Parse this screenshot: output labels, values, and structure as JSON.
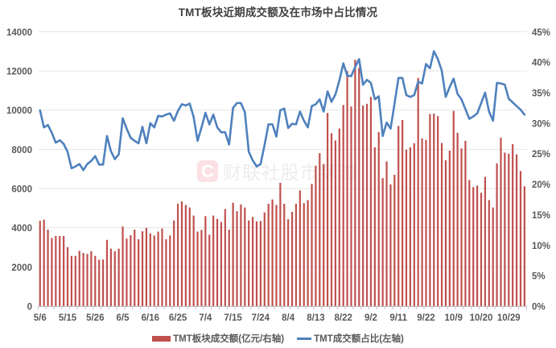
{
  "title": "TMT板块近期成交额及在市场中占比情况",
  "watermark": {
    "logo_letter": "C",
    "text": "财联社股市频道"
  },
  "legend": {
    "bar_label": "TMT板块成交额(亿元/右轴)",
    "line_label": "TMT成交额占比(左轴)"
  },
  "colors": {
    "bar": "#c0504d",
    "line": "#4f81bd",
    "grid": "#e4e4e4",
    "axis": "#bfbfbf",
    "axis_text": "#595959",
    "title": "#404040"
  },
  "chart_data": {
    "type": "bar",
    "combo": "bar+line",
    "title": "TMT板块近期成交额及在市场中占比情况",
    "xlabel": "",
    "ylabel": "",
    "x_tick_labels": [
      "5/6",
      "5/15",
      "5/26",
      "6/5",
      "6/16",
      "6/25",
      "7/4",
      "7/15",
      "7/24",
      "8/4",
      "8/13",
      "8/22",
      "9/2",
      "9/11",
      "9/22",
      "10/9",
      "10/20",
      "10/29"
    ],
    "x_tick_positions": [
      0,
      7,
      14,
      21,
      28,
      35,
      42,
      49,
      56,
      63,
      70,
      77,
      84,
      91,
      98,
      105,
      112,
      119
    ],
    "category_count": 124,
    "left_axis": {
      "range": [
        0,
        14000
      ],
      "ticks": [
        0,
        2000,
        4000,
        6000,
        8000,
        10000,
        12000,
        14000
      ],
      "tick_labels": [
        "0",
        "2000",
        "4000",
        "6000",
        "8000",
        "10000",
        "12000",
        "14000"
      ]
    },
    "right_axis": {
      "range": [
        0,
        45
      ],
      "ticks": [
        0,
        5,
        10,
        15,
        20,
        25,
        30,
        35,
        40,
        45
      ],
      "tick_labels": [
        "0%",
        "5%",
        "10%",
        "15%",
        "20%",
        "25%",
        "30%",
        "35%",
        "40%",
        "45%"
      ]
    },
    "grid": true,
    "legend_position": "bottom",
    "series": [
      {
        "name": "TMT板块成交额(亿元/右轴)",
        "type": "bar",
        "plotted_on": "left",
        "unit": "亿元",
        "values": [
          4350,
          4410,
          3900,
          3470,
          3580,
          3580,
          3580,
          3010,
          2560,
          2560,
          2820,
          2710,
          2660,
          2800,
          2560,
          2360,
          2380,
          3380,
          2930,
          2800,
          2930,
          4060,
          3440,
          3620,
          3900,
          3410,
          3820,
          3990,
          3710,
          3600,
          3800,
          3960,
          3410,
          3600,
          4370,
          5220,
          5340,
          5160,
          5030,
          4620,
          3800,
          3890,
          4590,
          3640,
          4620,
          4450,
          4290,
          4950,
          3900,
          5270,
          4840,
          5190,
          5030,
          4370,
          4550,
          4320,
          4340,
          4780,
          5220,
          5440,
          5160,
          6290,
          5220,
          4430,
          4810,
          5220,
          5900,
          5250,
          5410,
          6230,
          7160,
          7800,
          7250,
          9850,
          8820,
          8450,
          9060,
          10260,
          11990,
          10180,
          12570,
          12150,
          10230,
          10320,
          10670,
          8100,
          8880,
          6530,
          7380,
          6210,
          6700,
          9190,
          9490,
          7980,
          8100,
          8310,
          11640,
          8550,
          8480,
          9800,
          9820,
          9690,
          8320,
          7440,
          7930,
          9960,
          8840,
          8040,
          8430,
          6430,
          6070,
          6150,
          5780,
          6590,
          5410,
          5030,
          7280,
          8590,
          7830,
          7770,
          8260,
          7740,
          6890,
          6110
        ]
      },
      {
        "name": "TMT成交额占比(左轴)",
        "type": "line",
        "plotted_on": "right",
        "unit": "%",
        "values": [
          32.1,
          29.3,
          29.7,
          28.4,
          26.8,
          27.2,
          26.6,
          25.3,
          22.6,
          22.9,
          23.3,
          22.3,
          23.3,
          23.8,
          24.6,
          23.2,
          23.2,
          27.9,
          25.4,
          24.1,
          24.9,
          30.8,
          29.1,
          27.6,
          27.1,
          26.7,
          29.4,
          26.7,
          30.0,
          29.3,
          31.2,
          31.1,
          31.4,
          31.6,
          30.4,
          32.0,
          33.1,
          32.9,
          33.2,
          31.0,
          27.1,
          29.3,
          31.7,
          29.8,
          31.4,
          29.3,
          28.5,
          28.5,
          26.5,
          32.5,
          33.3,
          33.3,
          31.8,
          25.3,
          23.9,
          22.9,
          23.3,
          26.4,
          29.8,
          29.8,
          27.8,
          32.1,
          32.4,
          29.2,
          29.9,
          29.8,
          31.9,
          30.4,
          29.3,
          32.8,
          33.1,
          33.9,
          31.9,
          35.2,
          33.5,
          34.7,
          37.0,
          39.8,
          37.8,
          37.7,
          39.2,
          40.5,
          36.3,
          37.1,
          36.6,
          33.9,
          34.4,
          27.9,
          30.1,
          29.1,
          33.2,
          37.4,
          37.4,
          34.6,
          34.3,
          34.6,
          36.8,
          36.5,
          39.7,
          39.0,
          41.8,
          40.5,
          38.6,
          34.3,
          35.9,
          37.3,
          34.8,
          33.9,
          32.3,
          30.7,
          31.1,
          31.6,
          33.3,
          35.0,
          31.9,
          30.4,
          36.6,
          36.5,
          36.3,
          34.0,
          33.4,
          32.8,
          32.2,
          31.4
        ]
      }
    ]
  }
}
